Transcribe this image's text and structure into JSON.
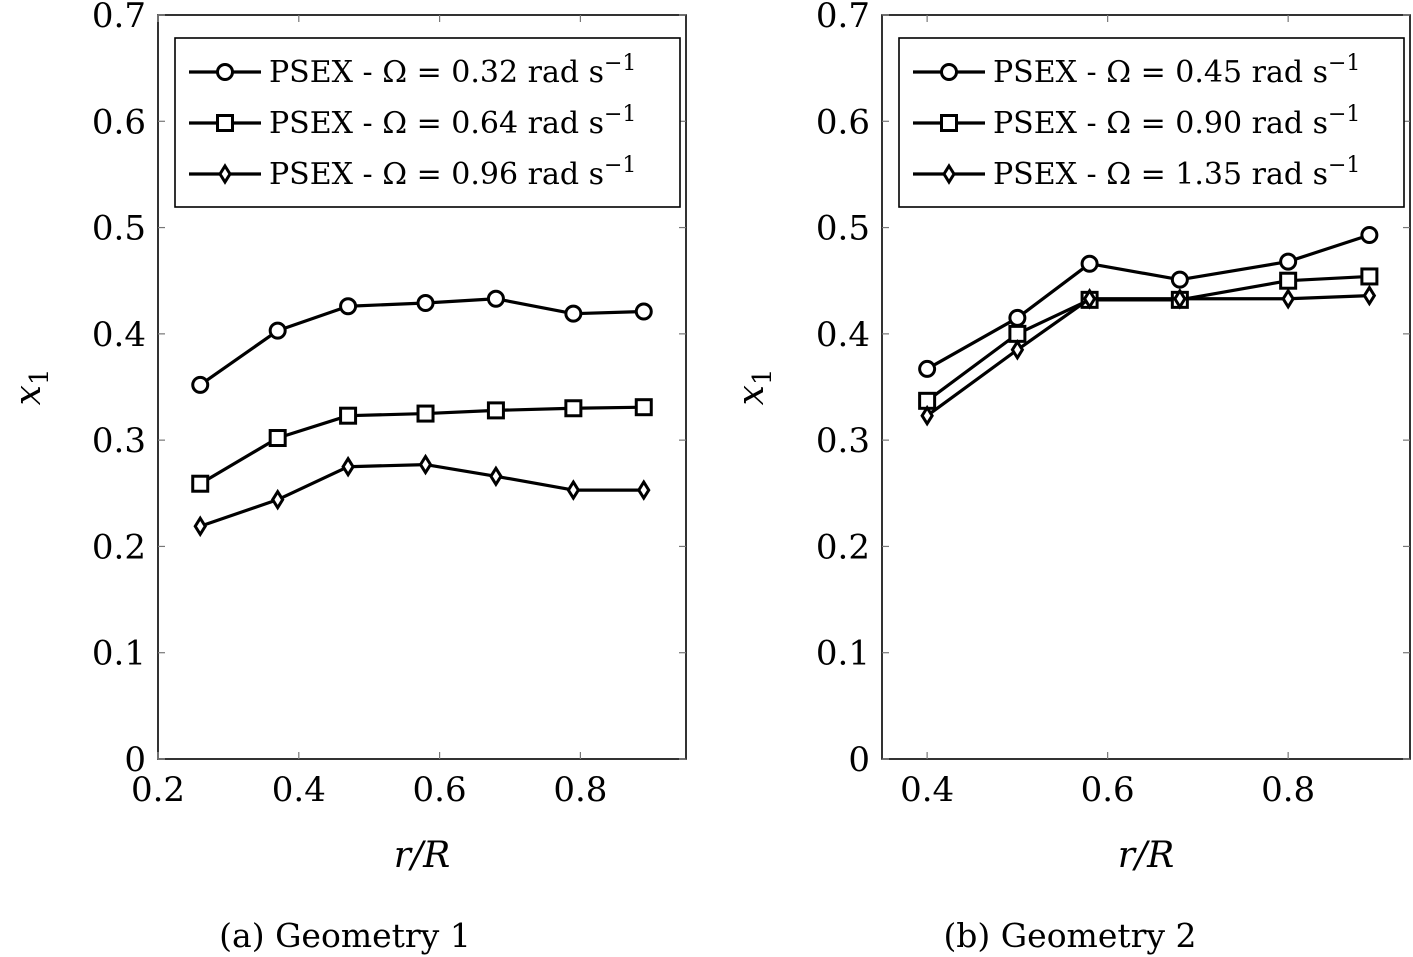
{
  "chart_data": [
    {
      "type": "line",
      "caption": "(a) Geometry 1",
      "xlabel": "r/R",
      "ylabel": "x1",
      "xlim": [
        0.2,
        0.95
      ],
      "ylim": [
        0,
        0.7
      ],
      "xticks": [
        0.2,
        0.4,
        0.6,
        0.8
      ],
      "xtick_labels": [
        "0.2",
        "0.4",
        "0.6",
        "0.8"
      ],
      "yticks": [
        0,
        0.1,
        0.2,
        0.3,
        0.4,
        0.5,
        0.6,
        0.7
      ],
      "ytick_labels": [
        "0",
        "0.1",
        "0.2",
        "0.3",
        "0.4",
        "0.5",
        "0.6",
        "0.7"
      ],
      "grid": false,
      "legend_position": "top",
      "x": [
        0.26,
        0.37,
        0.47,
        0.58,
        0.68,
        0.79,
        0.89
      ],
      "series": [
        {
          "name": "PSEX - Ω = 0.32 rad s⁻¹",
          "marker": "circle",
          "values": [
            0.352,
            0.403,
            0.426,
            0.429,
            0.433,
            0.419,
            0.421
          ]
        },
        {
          "name": "PSEX - Ω = 0.64 rad s⁻¹",
          "marker": "square",
          "values": [
            0.259,
            0.302,
            0.323,
            0.325,
            0.328,
            0.33,
            0.331
          ]
        },
        {
          "name": "PSEX - Ω = 0.96 rad s⁻¹",
          "marker": "diamond",
          "values": [
            0.219,
            0.244,
            0.275,
            0.277,
            0.266,
            0.253,
            0.253
          ]
        }
      ]
    },
    {
      "type": "line",
      "caption": "(b) Geometry 2",
      "xlabel": "r/R",
      "ylabel": "x1",
      "xlim": [
        0.35,
        0.935
      ],
      "ylim": [
        0,
        0.7
      ],
      "xticks": [
        0.4,
        0.6,
        0.8
      ],
      "xtick_labels": [
        "0.4",
        "0.6",
        "0.8"
      ],
      "yticks": [
        0,
        0.1,
        0.2,
        0.3,
        0.4,
        0.5,
        0.6,
        0.7
      ],
      "ytick_labels": [
        "0",
        "0.1",
        "0.2",
        "0.3",
        "0.4",
        "0.5",
        "0.6",
        "0.7"
      ],
      "grid": false,
      "legend_position": "top",
      "x": [
        0.4,
        0.5,
        0.58,
        0.68,
        0.8,
        0.89
      ],
      "series": [
        {
          "name": "PSEX - Ω = 0.45 rad s⁻¹",
          "marker": "circle",
          "values": [
            0.367,
            0.415,
            0.466,
            0.451,
            0.468,
            0.493
          ]
        },
        {
          "name": "PSEX - Ω = 0.90 rad s⁻¹",
          "marker": "square",
          "values": [
            0.337,
            0.4,
            0.432,
            0.432,
            0.45,
            0.454
          ]
        },
        {
          "name": "PSEX - Ω = 1.35 rad s⁻¹",
          "marker": "diamond",
          "values": [
            0.323,
            0.385,
            0.433,
            0.433,
            0.433,
            0.436
          ]
        }
      ]
    }
  ]
}
